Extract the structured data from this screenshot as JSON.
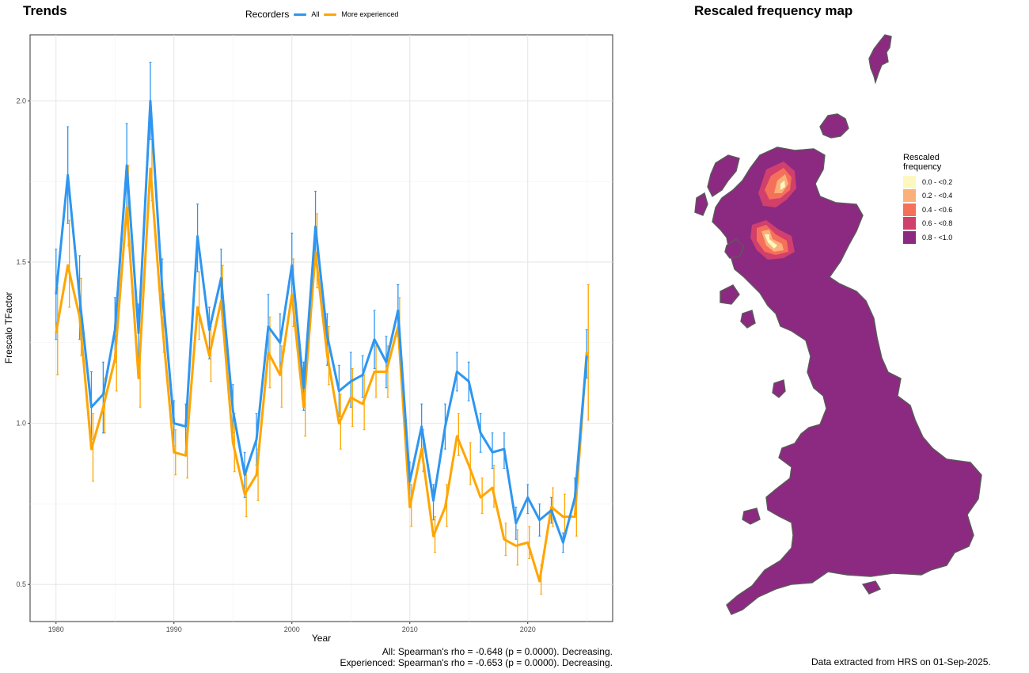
{
  "titles": {
    "trends": "Trends",
    "map": "Rescaled frequency map"
  },
  "legend": {
    "title": "Recorders",
    "items": [
      {
        "label": "All",
        "color": "#2E96F0"
      },
      {
        "label": "More experienced",
        "color": "#FFA500"
      }
    ]
  },
  "chart_data": {
    "type": "line",
    "xlabel": "Year",
    "ylabel": "Frescalo TFactor",
    "xlim": [
      1977.8,
      2027.2
    ],
    "ylim": [
      0.385,
      2.205
    ],
    "xticks": [
      "1980",
      "1990",
      "2000",
      "2010",
      "2020"
    ],
    "yticks": [
      "0.5",
      "1.0",
      "1.5",
      "2.0"
    ],
    "grid": true,
    "legend_position": "top",
    "x": [
      1980,
      1981,
      1982,
      1983,
      1984,
      1985,
      1986,
      1987,
      1988,
      1989,
      1990,
      1991,
      1992,
      1993,
      1994,
      1995,
      1996,
      1997,
      1998,
      1999,
      2000,
      2001,
      2002,
      2003,
      2004,
      2005,
      2006,
      2007,
      2008,
      2009,
      2010,
      2011,
      2012,
      2013,
      2014,
      2015,
      2016,
      2017,
      2018,
      2019,
      2020,
      2021,
      2022,
      2023,
      2024,
      2025
    ],
    "series": [
      {
        "name": "All",
        "color": "#2E96F0",
        "values": [
          1.4,
          1.77,
          1.39,
          1.05,
          1.09,
          1.29,
          1.8,
          1.28,
          2.0,
          1.42,
          1.0,
          0.99,
          1.58,
          1.29,
          1.45,
          1.04,
          0.84,
          0.95,
          1.3,
          1.25,
          1.49,
          1.11,
          1.61,
          1.27,
          1.1,
          1.13,
          1.15,
          1.26,
          1.19,
          1.35,
          0.82,
          0.99,
          0.76,
          0.99,
          1.16,
          1.13,
          0.97,
          0.91,
          0.92,
          0.69,
          0.77,
          0.7,
          0.73,
          0.63,
          0.77,
          1.21
        ],
        "lower": [
          1.26,
          1.62,
          1.26,
          0.95,
          0.97,
          1.19,
          1.67,
          1.2,
          1.88,
          1.33,
          0.93,
          0.91,
          1.47,
          1.2,
          1.36,
          0.97,
          0.77,
          0.87,
          1.2,
          1.16,
          1.39,
          1.04,
          1.5,
          1.18,
          1.02,
          1.05,
          1.08,
          1.17,
          1.11,
          1.27,
          0.76,
          0.91,
          0.7,
          0.92,
          1.1,
          1.07,
          0.91,
          0.86,
          0.86,
          0.64,
          0.72,
          0.65,
          0.69,
          0.6,
          0.72,
          1.14
        ],
        "upper": [
          1.54,
          1.92,
          1.52,
          1.16,
          1.19,
          1.39,
          1.93,
          1.37,
          2.12,
          1.51,
          1.07,
          1.06,
          1.68,
          1.36,
          1.54,
          1.12,
          0.91,
          1.03,
          1.4,
          1.34,
          1.59,
          1.19,
          1.72,
          1.34,
          1.18,
          1.22,
          1.21,
          1.35,
          1.27,
          1.43,
          0.88,
          1.06,
          0.81,
          1.06,
          1.22,
          1.19,
          1.03,
          0.97,
          0.97,
          0.74,
          0.81,
          0.75,
          0.77,
          0.66,
          0.83,
          1.29
        ]
      },
      {
        "name": "More experienced",
        "color": "#FFA500",
        "values": [
          1.28,
          1.49,
          1.33,
          0.92,
          1.05,
          1.2,
          1.67,
          1.14,
          1.79,
          1.31,
          0.91,
          0.9,
          1.36,
          1.21,
          1.38,
          0.94,
          0.78,
          0.84,
          1.22,
          1.15,
          1.4,
          1.05,
          1.53,
          1.21,
          1.0,
          1.08,
          1.06,
          1.16,
          1.16,
          1.3,
          0.74,
          0.92,
          0.65,
          0.74,
          0.96,
          0.87,
          0.77,
          0.8,
          0.64,
          0.62,
          0.63,
          0.51,
          0.74,
          0.71,
          0.71,
          1.22
        ],
        "lower": [
          1.15,
          1.36,
          1.21,
          0.82,
          0.97,
          1.1,
          1.55,
          1.05,
          1.69,
          1.22,
          0.84,
          0.83,
          1.26,
          1.13,
          1.3,
          0.85,
          0.71,
          0.76,
          1.11,
          1.05,
          1.3,
          0.96,
          1.42,
          1.12,
          0.92,
          0.99,
          0.98,
          1.08,
          1.08,
          1.22,
          0.68,
          0.85,
          0.6,
          0.68,
          0.9,
          0.81,
          0.72,
          0.74,
          0.59,
          0.56,
          0.58,
          0.47,
          0.68,
          0.65,
          0.65,
          1.01
        ],
        "upper": [
          1.42,
          1.63,
          1.45,
          1.03,
          1.14,
          1.3,
          1.8,
          1.24,
          1.92,
          1.4,
          0.98,
          0.98,
          1.47,
          1.3,
          1.49,
          1.03,
          0.85,
          0.92,
          1.33,
          1.24,
          1.51,
          1.13,
          1.65,
          1.3,
          1.09,
          1.17,
          1.15,
          1.24,
          1.24,
          1.39,
          0.81,
          0.98,
          0.71,
          0.81,
          1.03,
          0.94,
          0.83,
          0.87,
          0.69,
          0.67,
          0.68,
          0.56,
          0.8,
          0.78,
          0.78,
          1.43
        ]
      }
    ]
  },
  "stats": {
    "all": "All: Spearman's rho = -0.648 (p = 0.0000). Decreasing.",
    "experienced": "Experienced: Spearman's rho = -0.653 (p = 0.0000). Decreasing."
  },
  "map": {
    "legend_title_line1": "Rescaled",
    "legend_title_line2": "frequency",
    "legend": [
      {
        "label": "0.0 - <0.2",
        "color": "#FCF8C0"
      },
      {
        "label": "0.2 - <0.4",
        "color": "#FBB07A"
      },
      {
        "label": "0.4 - <0.6",
        "color": "#F5705A"
      },
      {
        "label": "0.6 - <0.8",
        "color": "#D13F6C"
      },
      {
        "label": "0.8 - <1.0",
        "color": "#8B2A80"
      }
    ],
    "fill_color": "#8B2A80",
    "outline_color": "#5A5A5A"
  },
  "footer": {
    "note": "Data extracted from HRS on 01-Sep-2025."
  }
}
